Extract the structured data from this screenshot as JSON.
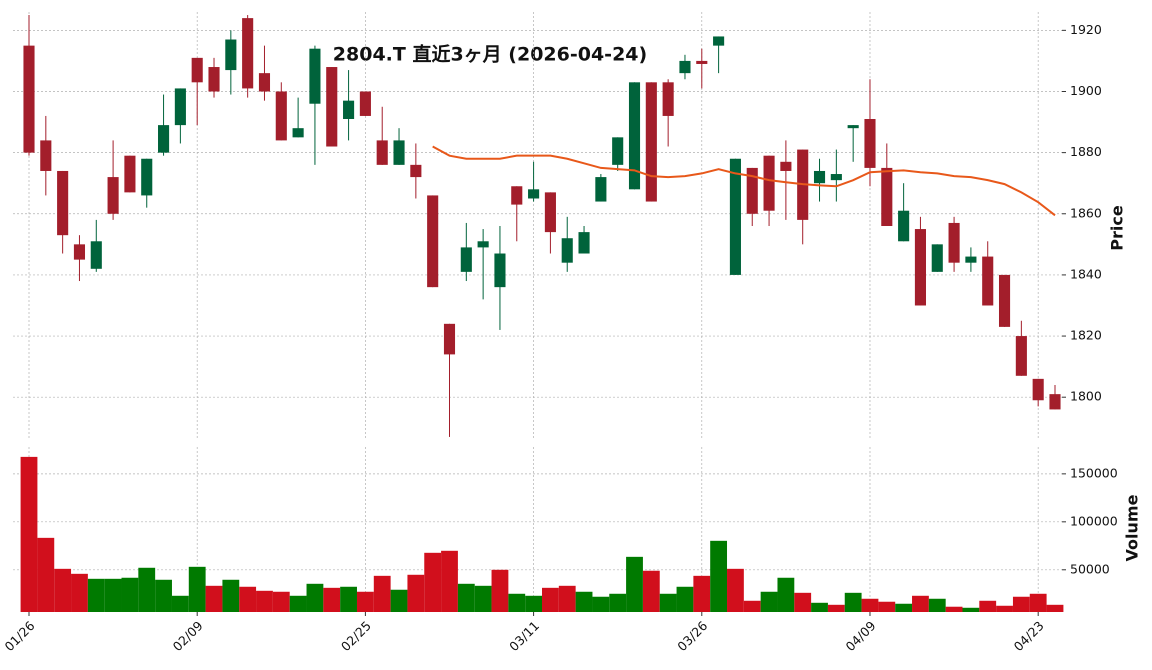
{
  "chart_data": {
    "type": "candlestick",
    "title": "2804.T  直近3ヶ月  (2026-04-24)",
    "categories": [
      "01/26",
      null,
      null,
      null,
      null,
      null,
      null,
      null,
      null,
      null,
      "02/09",
      null,
      null,
      null,
      null,
      null,
      null,
      null,
      null,
      null,
      "02/25",
      null,
      null,
      null,
      null,
      null,
      null,
      null,
      null,
      null,
      "03/11",
      null,
      null,
      null,
      null,
      null,
      null,
      null,
      null,
      null,
      "03/26",
      null,
      null,
      null,
      null,
      null,
      null,
      null,
      null,
      null,
      "04/09",
      null,
      null,
      null,
      null,
      null,
      null,
      null,
      null,
      null,
      "04/23",
      null
    ],
    "open": [
      1915,
      1884,
      1874,
      1850,
      1842,
      1872,
      1879,
      1866,
      1880,
      1889,
      1911,
      1908,
      1907,
      1924,
      1906,
      1900,
      1885,
      1896,
      1908,
      1891,
      1900,
      1884,
      1876,
      1876,
      1866,
      1824,
      1841,
      1849,
      1836,
      1869,
      1865,
      1867,
      1844,
      1847,
      1864,
      1876,
      1868,
      1903,
      1903,
      1906,
      1910,
      1915,
      1840,
      1875,
      1879,
      1877,
      1881,
      1870,
      1871,
      1888,
      1891,
      1875,
      1851,
      1855,
      1841,
      1857,
      1844,
      1846,
      1840,
      1820,
      1806,
      1801
    ],
    "high": [
      1925,
      1892,
      1874,
      1853,
      1858,
      1884,
      1879,
      1878,
      1899,
      1901,
      1911,
      1911,
      1920,
      1925,
      1915,
      1903,
      1898,
      1915,
      1908,
      1907,
      1900,
      1895,
      1888,
      1883,
      1866,
      1824,
      1857,
      1855,
      1856,
      1869,
      1877,
      1867,
      1859,
      1856,
      1873,
      1885,
      1903,
      1903,
      1904,
      1912,
      1914,
      1918,
      1878,
      1875,
      1879,
      1884,
      1881,
      1878,
      1881,
      1889,
      1904,
      1883,
      1870,
      1859,
      1850,
      1859,
      1849,
      1851,
      1840,
      1825,
      1806,
      1804
    ],
    "low": [
      1879,
      1866,
      1847,
      1838,
      1841,
      1858,
      1867,
      1862,
      1879,
      1883,
      1889,
      1898,
      1899,
      1898,
      1897,
      1884,
      1885,
      1876,
      1882,
      1884,
      1892,
      1876,
      1876,
      1865,
      1836,
      1787,
      1838,
      1832,
      1822,
      1851,
      1864,
      1847,
      1841,
      1847,
      1864,
      1874,
      1868,
      1864,
      1882,
      1904,
      1901,
      1906,
      1840,
      1856,
      1856,
      1858,
      1850,
      1864,
      1864,
      1877,
      1869,
      1856,
      1851,
      1830,
      1841,
      1841,
      1841,
      1830,
      1823,
      1807,
      1797,
      1796
    ],
    "close": [
      1880,
      1874,
      1853,
      1845,
      1851,
      1860,
      1867,
      1878,
      1889,
      1901,
      1903,
      1900,
      1917,
      1901,
      1900,
      1884,
      1888,
      1914,
      1882,
      1897,
      1892,
      1876,
      1884,
      1872,
      1836,
      1814,
      1849,
      1851,
      1847,
      1863,
      1868,
      1854,
      1852,
      1854,
      1872,
      1885,
      1903,
      1864,
      1892,
      1910,
      1909,
      1918,
      1878,
      1860,
      1861,
      1874,
      1858,
      1874,
      1873,
      1889,
      1875,
      1856,
      1861,
      1830,
      1850,
      1844,
      1846,
      1830,
      1823,
      1807,
      1799,
      1796
    ],
    "volume": [
      167700,
      83300,
      51000,
      45800,
      40600,
      40600,
      41700,
      52100,
      39600,
      22900,
      53100,
      33300,
      39600,
      32300,
      28100,
      27100,
      22900,
      35400,
      31200,
      32300,
      27100,
      43700,
      29200,
      44800,
      67700,
      69800,
      35400,
      33300,
      50000,
      25000,
      22900,
      31200,
      33300,
      27100,
      21900,
      25000,
      63500,
      49000,
      25000,
      32300,
      43700,
      80200,
      51000,
      17700,
      27100,
      41700,
      26000,
      15600,
      13500,
      26000,
      19800,
      16700,
      14600,
      22900,
      19800,
      11500,
      10400,
      17700,
      12500,
      21900,
      25000,
      13500
    ],
    "moving_average": {
      "color": "#e8581a",
      "values": [
        null,
        null,
        null,
        null,
        null,
        null,
        null,
        null,
        null,
        null,
        null,
        null,
        null,
        null,
        null,
        null,
        null,
        null,
        null,
        null,
        null,
        null,
        null,
        null,
        1882,
        1879,
        1878,
        1878,
        1878,
        1879,
        1879,
        1879,
        1878,
        1876.5,
        1875,
        1874.6,
        1874.2,
        1872.3,
        1872,
        1872.3,
        1873.2,
        1874.6,
        1873.2,
        1872.3,
        1871,
        1870.3,
        1869.7,
        1869.3,
        1869,
        1871,
        1873.6,
        1873.9,
        1874.2,
        1873.6,
        1873.2,
        1872.3,
        1872,
        1871,
        1869.7,
        1867,
        1863.8,
        1859.5
      ]
    },
    "up_color": "#00633b",
    "down_color": "#a31e2b",
    "volume_up_color": "#007a00",
    "volume_down_color": "#d10f1c",
    "ylabel": "Price",
    "ylim": [
      1786,
      1926
    ],
    "yticks": [
      1800,
      1820,
      1840,
      1860,
      1880,
      1900,
      1920
    ],
    "volume_label": "Volume",
    "volume_ylim": [
      6000,
      178000
    ],
    "volume_yticks": [
      50000,
      100000,
      150000
    ],
    "grid": true
  }
}
